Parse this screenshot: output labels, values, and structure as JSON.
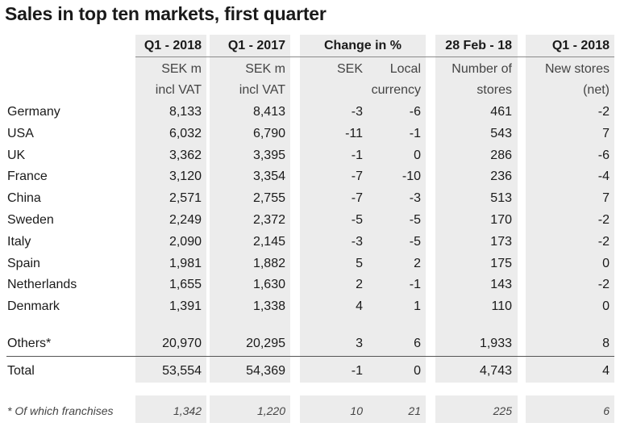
{
  "title": "Sales in top ten markets, first quarter",
  "headers": {
    "col1": "Q1 - 2018",
    "col2": "Q1 - 2017",
    "change_group": "Change in %",
    "col4": "28 Feb - 18",
    "col5": "Q1 - 2018"
  },
  "subheaders": {
    "col1_line1": "SEK m",
    "col1_line2": "incl VAT",
    "col2_line1": "SEK m",
    "col2_line2": "incl VAT",
    "sek": "SEK",
    "local_line1": "Local",
    "local_line2": "currency",
    "col4_line1": "Number of",
    "col4_line2": "stores",
    "col5_line1": "New stores",
    "col5_line2": "(net)"
  },
  "rows": [
    {
      "market": "Germany",
      "q1_2018": "8,133",
      "q1_2017": "8,413",
      "sek": "-3",
      "local": "-6",
      "stores": "461",
      "new_stores": "-2"
    },
    {
      "market": "USA",
      "q1_2018": "6,032",
      "q1_2017": "6,790",
      "sek": "-11",
      "local": "-1",
      "stores": "543",
      "new_stores": "7"
    },
    {
      "market": "UK",
      "q1_2018": "3,362",
      "q1_2017": "3,395",
      "sek": "-1",
      "local": "0",
      "stores": "286",
      "new_stores": "-6"
    },
    {
      "market": "France",
      "q1_2018": "3,120",
      "q1_2017": "3,354",
      "sek": "-7",
      "local": "-10",
      "stores": "236",
      "new_stores": "-4"
    },
    {
      "market": "China",
      "q1_2018": "2,571",
      "q1_2017": "2,755",
      "sek": "-7",
      "local": "-3",
      "stores": "513",
      "new_stores": "7"
    },
    {
      "market": "Sweden",
      "q1_2018": "2,249",
      "q1_2017": "2,372",
      "sek": "-5",
      "local": "-5",
      "stores": "170",
      "new_stores": "-2"
    },
    {
      "market": "Italy",
      "q1_2018": "2,090",
      "q1_2017": "2,145",
      "sek": "-3",
      "local": "-5",
      "stores": "173",
      "new_stores": "-2"
    },
    {
      "market": "Spain",
      "q1_2018": "1,981",
      "q1_2017": "1,882",
      "sek": "5",
      "local": "2",
      "stores": "175",
      "new_stores": "0"
    },
    {
      "market": "Netherlands",
      "q1_2018": "1,655",
      "q1_2017": "1,630",
      "sek": "2",
      "local": "-1",
      "stores": "143",
      "new_stores": "-2"
    },
    {
      "market": "Denmark",
      "q1_2018": "1,391",
      "q1_2017": "1,338",
      "sek": "4",
      "local": "1",
      "stores": "110",
      "new_stores": "0"
    }
  ],
  "others": {
    "market": "Others*",
    "q1_2018": "20,970",
    "q1_2017": "20,295",
    "sek": "3",
    "local": "6",
    "stores": "1,933",
    "new_stores": "8"
  },
  "total": {
    "market": "Total",
    "q1_2018": "53,554",
    "q1_2017": "54,369",
    "sek": "-1",
    "local": "0",
    "stores": "4,743",
    "new_stores": "4"
  },
  "footnote": {
    "market": "* Of which franchises",
    "q1_2018": "1,342",
    "q1_2017": "1,220",
    "sek": "10",
    "local": "21",
    "stores": "225",
    "new_stores": "6"
  }
}
